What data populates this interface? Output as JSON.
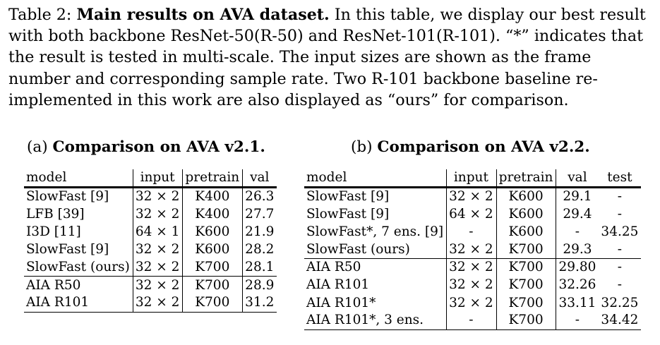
{
  "caption": {
    "label": "Table 2:",
    "bold": "Main results on AVA dataset.",
    "text": "In this table, we display our best result with both backbone ResNet-50(R-50) and ResNet-101(R-101). “*” indicates that the result is tested in multi-scale. The input sizes are shown as the frame number and corresponding sample rate. Two R-101 backbone baseline re-implemented in this work are also displayed as “ours” for comparison."
  },
  "table_a": {
    "prefix": "(a)",
    "title": "Comparison on AVA v2.1.",
    "headers": [
      "model",
      "input",
      "pretrain",
      "val"
    ],
    "rows": [
      [
        "SlowFast [9]",
        "32 × 2",
        "K400",
        "26.3"
      ],
      [
        "LFB [39]",
        "32 × 2",
        "K400",
        "27.7"
      ],
      [
        "I3D [11]",
        "64 × 1",
        "K600",
        "21.9"
      ],
      [
        "SlowFast [9]",
        "32 × 2",
        "K600",
        "28.2"
      ],
      [
        "SlowFast (ours)",
        "32 × 2",
        "K700",
        "28.1"
      ],
      [
        "AIA R50",
        "32 × 2",
        "K700",
        "28.9"
      ],
      [
        "AIA R101",
        "32 × 2",
        "K700",
        "31.2"
      ]
    ]
  },
  "table_b": {
    "prefix": "(b)",
    "title": "Comparison on AVA v2.2.",
    "headers": [
      "model",
      "input",
      "pretrain",
      "val",
      "test"
    ],
    "rows": [
      [
        "SlowFast [9]",
        "32 × 2",
        "K600",
        "29.1",
        "-"
      ],
      [
        "SlowFast [9]",
        "64 × 2",
        "K600",
        "29.4",
        "-"
      ],
      [
        "SlowFast*, 7 ens. [9]",
        "-",
        "K600",
        "-",
        "34.25"
      ],
      [
        "SlowFast (ours)",
        "32 × 2",
        "K700",
        "29.3",
        "-"
      ],
      [
        "AIA R50",
        "32 × 2",
        "K700",
        "29.80",
        "-"
      ],
      [
        "AIA R101",
        "32 × 2",
        "K700",
        "32.26",
        "-"
      ],
      [
        "AIA R101*",
        "32 × 2",
        "K700",
        "33.11",
        "32.25"
      ],
      [
        "AIA R101*, 3 ens.",
        "-",
        "K700",
        "-",
        "34.42"
      ]
    ]
  }
}
